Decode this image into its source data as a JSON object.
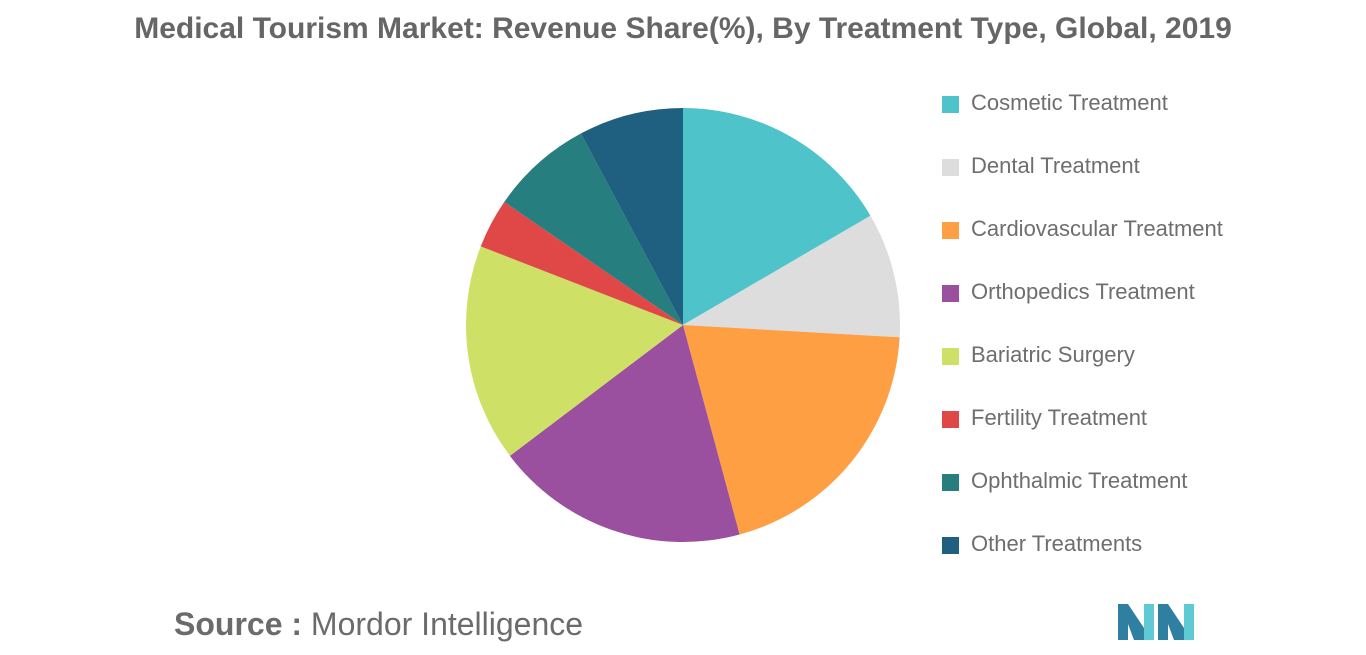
{
  "chart_data": {
    "type": "pie",
    "title": "Medical Tourism Market: Revenue Share(%), By Treatment Type, Global, 2019",
    "categories": [
      "Cosmetic Treatment",
      "Dental Treatment",
      "Cardiovascular Treatment",
      "Orthopedics Treatment",
      "Bariatric Surgery",
      "Fertility Treatment",
      "Ophthalmic Treatment",
      "Other Treatments"
    ],
    "values": [
      16.6,
      9.3,
      19.9,
      18.9,
      16.2,
      3.7,
      7.6,
      7.8
    ],
    "colors": [
      "#4fc3ca",
      "#dddddd",
      "#ff9f43",
      "#9b4f9f",
      "#cfe067",
      "#e04848",
      "#267e7f",
      "#1f5f80"
    ],
    "legend_position": "right",
    "start": "top, clockwise"
  },
  "source": {
    "label": "Source :",
    "value": "Mordor Intelligence"
  },
  "logo": {
    "colors": [
      "#2f7fa3",
      "#5fc9d4"
    ]
  }
}
